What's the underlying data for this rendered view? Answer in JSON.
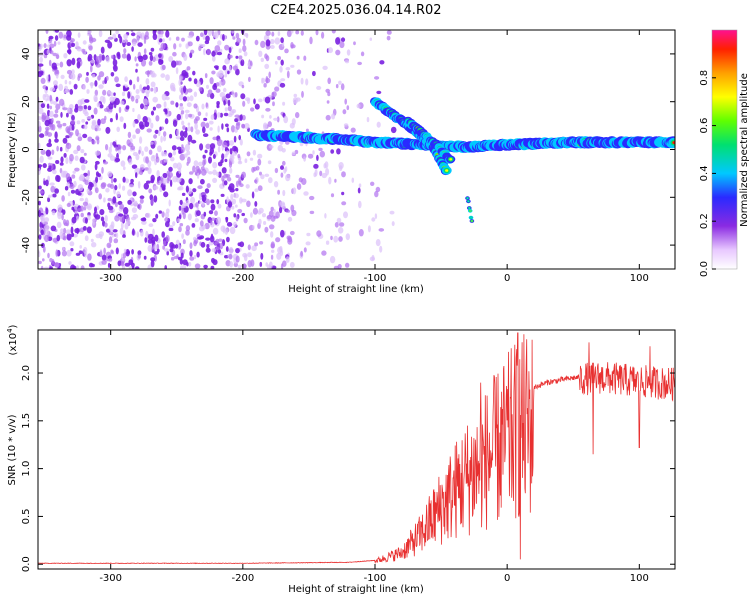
{
  "title": "C2E4.2025.036.04.14.R02",
  "chart_data": [
    {
      "type": "heatmap",
      "xlabel": "Height of straight line (km)",
      "ylabel": "Frequency (Hz)",
      "xlim": [
        -355,
        127
      ],
      "ylim": [
        -50,
        50
      ],
      "xticks": [
        -300,
        -200,
        -100,
        0,
        100
      ],
      "yticks": [
        -40,
        -20,
        0,
        20,
        40
      ],
      "ytick_labels": [
        "-40",
        "-20",
        "0",
        "20",
        "40"
      ],
      "colorbar": {
        "label": "Normalized spectral amplitude",
        "range": [
          0,
          1
        ],
        "ticks": [
          0.0,
          0.2,
          0.4,
          0.6,
          0.8
        ],
        "tick_labels": [
          "0.0",
          "0.2",
          "0.4",
          "0.6",
          "0.8"
        ]
      },
      "features": {
        "noise_band_height_range": [
          -355,
          -120
        ],
        "main_trace": [
          [
            -190,
            6
          ],
          [
            -150,
            5
          ],
          [
            -120,
            4
          ],
          [
            -100,
            3
          ],
          [
            -60,
            2
          ],
          [
            -30,
            1
          ],
          [
            0,
            2
          ],
          [
            50,
            3
          ],
          [
            127,
            3
          ]
        ],
        "upper_branch": [
          [
            -100,
            20
          ],
          [
            -80,
            12
          ],
          [
            -65,
            6
          ],
          [
            -55,
            0
          ],
          [
            -50,
            -5
          ],
          [
            -45,
            -10
          ]
        ],
        "middle_branch": [
          [
            -75,
            12
          ],
          [
            -60,
            5
          ],
          [
            -50,
            0
          ],
          [
            -42,
            -5
          ]
        ],
        "lower_tail": [
          [
            -30,
            -20
          ],
          [
            -26,
            -32
          ]
        ]
      }
    },
    {
      "type": "line",
      "xlabel": "Height of straight line (km)",
      "ylabel": "SNR (10 * v/v)",
      "scale_label": "(x10",
      "scale_exp": "4",
      "scale_close": ")",
      "xlim": [
        -355,
        127
      ],
      "ylim": [
        -0.05,
        2.45
      ],
      "xticks": [
        -300,
        -200,
        -100,
        0,
        100
      ],
      "yticks": [
        0.0,
        0.5,
        1.0,
        1.5,
        2.0
      ],
      "ytick_labels": [
        "0.0",
        "0.5",
        "1.0",
        "1.5",
        "2.0"
      ],
      "color": "#e83030",
      "envelope": [
        [
          -355,
          0.01
        ],
        [
          -200,
          0.01
        ],
        [
          -120,
          0.02
        ],
        [
          -100,
          0.04
        ],
        [
          -80,
          0.15
        ],
        [
          -65,
          0.4
        ],
        [
          -50,
          0.75
        ],
        [
          -35,
          1.05
        ],
        [
          -20,
          1.3
        ],
        [
          -5,
          1.55
        ],
        [
          5,
          1.72
        ],
        [
          15,
          1.82
        ],
        [
          30,
          1.9
        ],
        [
          50,
          1.95
        ],
        [
          70,
          1.97
        ],
        [
          100,
          1.93
        ],
        [
          127,
          1.9
        ]
      ],
      "spikes": [
        [
          8,
          2.42
        ],
        [
          10,
          0.05
        ],
        [
          62,
          2.32
        ],
        [
          -20,
          1.9
        ],
        [
          108,
          2.28
        ],
        [
          65,
          1.15
        ],
        [
          100,
          1.22
        ]
      ]
    }
  ],
  "xtick_label_text": {
    "-300": "-300",
    "-200": "-200",
    "-100": "-100",
    "0": "0",
    "100": "100"
  }
}
